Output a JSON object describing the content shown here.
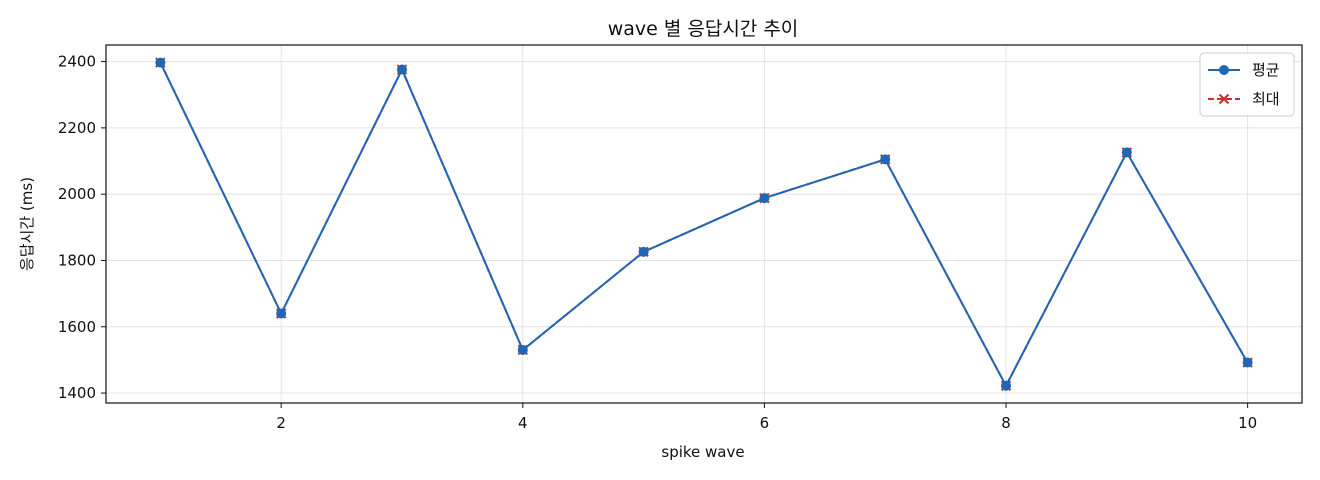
{
  "chart_data": {
    "type": "line",
    "title": "wave 별 응답시간 추이",
    "xlabel": "spike wave",
    "ylabel": "응답시간 (ms)",
    "x": [
      1,
      2,
      3,
      4,
      5,
      6,
      7,
      8,
      9,
      10
    ],
    "xlim": [
      0.55,
      10.45
    ],
    "ylim": [
      1370,
      2450
    ],
    "xticks": [
      2,
      4,
      6,
      8,
      10
    ],
    "yticks": [
      1400,
      1600,
      1800,
      2000,
      2200,
      2400
    ],
    "grid": true,
    "legend_position": "top-right",
    "series": [
      {
        "name": "평균",
        "values": [
          2397,
          1640,
          2376,
          1530,
          1826,
          1988,
          2105,
          1422,
          2126,
          1492
        ],
        "color": "#1f66b5",
        "marker": "circle",
        "linestyle": "solid"
      },
      {
        "name": "최대",
        "values": [
          2397,
          1640,
          2376,
          1530,
          1826,
          1988,
          2105,
          1422,
          2126,
          1492
        ],
        "color": "#c62f2f",
        "marker": "x",
        "linestyle": "dashed"
      }
    ]
  }
}
